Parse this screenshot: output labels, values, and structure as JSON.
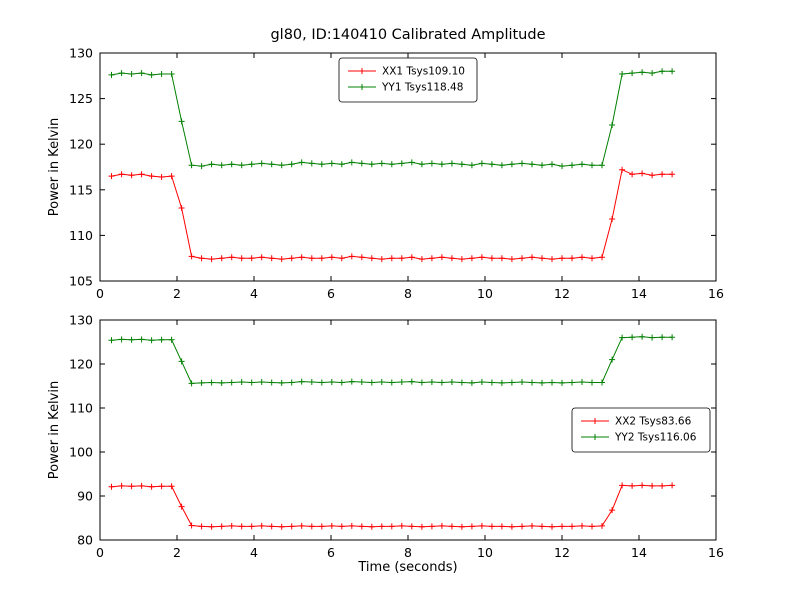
{
  "title": "gl80, ID:140410 Calibrated Amplitude",
  "colors": {
    "xx": "#ff0000",
    "yy": "#008000",
    "axis": "#000000",
    "background": "#ffffff",
    "text": "#000000"
  },
  "chart_data": [
    {
      "type": "line",
      "title": "gl80, ID:140410 Calibrated Amplitude",
      "xlabel": "",
      "ylabel": "Power in Kelvin",
      "xlim": [
        0,
        16
      ],
      "ylim": [
        105,
        130
      ],
      "xticks": [
        0,
        2,
        4,
        6,
        8,
        10,
        12,
        14,
        16
      ],
      "yticks": [
        105,
        110,
        115,
        120,
        125,
        130
      ],
      "grid": false,
      "marker": "+",
      "legend_position": "top-center",
      "x": [
        0.3,
        0.56,
        0.82,
        1.08,
        1.34,
        1.6,
        1.86,
        2.12,
        2.38,
        2.64,
        2.9,
        3.16,
        3.42,
        3.68,
        3.94,
        4.2,
        4.46,
        4.72,
        4.98,
        5.24,
        5.5,
        5.76,
        6.02,
        6.28,
        6.54,
        6.8,
        7.06,
        7.32,
        7.58,
        7.84,
        8.1,
        8.36,
        8.62,
        8.88,
        9.14,
        9.4,
        9.66,
        9.92,
        10.18,
        10.44,
        10.7,
        10.96,
        11.22,
        11.48,
        11.74,
        12.0,
        12.26,
        12.52,
        12.78,
        13.04,
        13.3,
        13.56,
        13.82,
        14.08,
        14.34,
        14.6,
        14.86
      ],
      "series": [
        {
          "name": "XX1 Tsys109.10",
          "color": "#ff0000",
          "values": [
            116.5,
            116.7,
            116.6,
            116.7,
            116.5,
            116.4,
            116.5,
            113.0,
            107.7,
            107.5,
            107.4,
            107.5,
            107.6,
            107.5,
            107.5,
            107.6,
            107.5,
            107.4,
            107.5,
            107.6,
            107.5,
            107.5,
            107.6,
            107.5,
            107.7,
            107.6,
            107.5,
            107.4,
            107.5,
            107.5,
            107.6,
            107.4,
            107.5,
            107.6,
            107.5,
            107.4,
            107.5,
            107.6,
            107.5,
            107.5,
            107.4,
            107.5,
            107.6,
            107.5,
            107.4,
            107.5,
            107.5,
            107.6,
            107.5,
            107.6,
            111.8,
            117.2,
            116.7,
            116.8,
            116.6,
            116.7,
            116.7
          ]
        },
        {
          "name": "YY1 Tsys118.48",
          "color": "#008000",
          "values": [
            127.6,
            127.8,
            127.7,
            127.8,
            127.6,
            127.7,
            127.7,
            122.5,
            117.7,
            117.6,
            117.8,
            117.7,
            117.8,
            117.7,
            117.8,
            117.9,
            117.8,
            117.7,
            117.8,
            118.0,
            117.9,
            117.8,
            117.9,
            117.8,
            118.0,
            117.9,
            117.8,
            117.9,
            117.8,
            117.9,
            118.0,
            117.8,
            117.9,
            117.8,
            117.9,
            117.8,
            117.7,
            117.9,
            117.8,
            117.7,
            117.8,
            117.9,
            117.8,
            117.7,
            117.8,
            117.6,
            117.7,
            117.8,
            117.7,
            117.7,
            122.1,
            127.7,
            127.8,
            127.9,
            127.8,
            128.0,
            128.0
          ]
        }
      ]
    },
    {
      "type": "line",
      "title": "",
      "xlabel": "Time (seconds)",
      "ylabel": "Power in Kelvin",
      "xlim": [
        0,
        16
      ],
      "ylim": [
        80,
        130
      ],
      "xticks": [
        0,
        2,
        4,
        6,
        8,
        10,
        12,
        14,
        16
      ],
      "yticks": [
        80,
        90,
        100,
        110,
        120,
        130
      ],
      "grid": false,
      "marker": "+",
      "legend_position": "right-middle",
      "x": [
        0.3,
        0.56,
        0.82,
        1.08,
        1.34,
        1.6,
        1.86,
        2.12,
        2.38,
        2.64,
        2.9,
        3.16,
        3.42,
        3.68,
        3.94,
        4.2,
        4.46,
        4.72,
        4.98,
        5.24,
        5.5,
        5.76,
        6.02,
        6.28,
        6.54,
        6.8,
        7.06,
        7.32,
        7.58,
        7.84,
        8.1,
        8.36,
        8.62,
        8.88,
        9.14,
        9.4,
        9.66,
        9.92,
        10.18,
        10.44,
        10.7,
        10.96,
        11.22,
        11.48,
        11.74,
        12.0,
        12.26,
        12.52,
        12.78,
        13.04,
        13.3,
        13.56,
        13.82,
        14.08,
        14.34,
        14.6,
        14.86
      ],
      "series": [
        {
          "name": "XX2 Tsys83.66",
          "color": "#ff0000",
          "values": [
            92.1,
            92.3,
            92.2,
            92.3,
            92.1,
            92.2,
            92.2,
            87.6,
            83.3,
            83.1,
            83.0,
            83.1,
            83.2,
            83.1,
            83.1,
            83.2,
            83.1,
            83.0,
            83.1,
            83.2,
            83.1,
            83.1,
            83.2,
            83.1,
            83.2,
            83.1,
            83.0,
            83.1,
            83.1,
            83.2,
            83.1,
            83.0,
            83.1,
            83.2,
            83.1,
            83.0,
            83.1,
            83.2,
            83.1,
            83.1,
            83.0,
            83.1,
            83.2,
            83.1,
            83.0,
            83.1,
            83.1,
            83.2,
            83.1,
            83.2,
            86.8,
            92.4,
            92.3,
            92.4,
            92.3,
            92.3,
            92.4
          ]
        },
        {
          "name": "YY2 Tsys116.06",
          "color": "#008000",
          "values": [
            125.4,
            125.6,
            125.5,
            125.6,
            125.4,
            125.5,
            125.5,
            120.6,
            115.6,
            115.7,
            115.8,
            115.7,
            115.8,
            115.9,
            115.8,
            115.9,
            115.8,
            115.7,
            115.8,
            116.0,
            115.9,
            115.8,
            115.9,
            115.8,
            116.0,
            115.9,
            115.8,
            115.9,
            115.8,
            115.9,
            116.0,
            115.8,
            115.9,
            115.8,
            115.9,
            115.8,
            115.7,
            115.9,
            115.8,
            115.7,
            115.8,
            115.9,
            115.8,
            115.7,
            115.8,
            115.7,
            115.8,
            115.9,
            115.8,
            115.8,
            121.0,
            126.0,
            126.1,
            126.2,
            126.0,
            126.1,
            126.1
          ]
        }
      ]
    }
  ]
}
